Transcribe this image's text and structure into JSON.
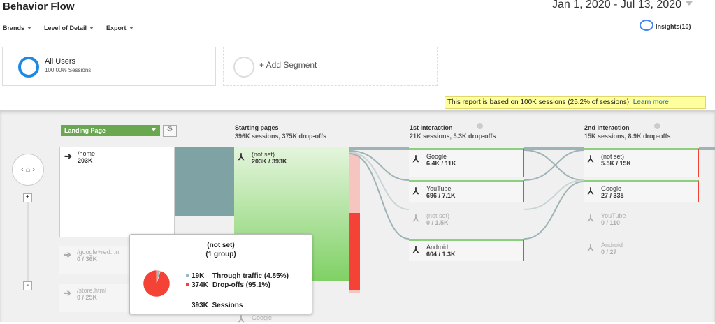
{
  "header": {
    "title": "Behavior Flow",
    "date_range": "Jan 1, 2020 - Jul 13, 2020"
  },
  "toolbar": {
    "menus": [
      "Brands",
      "Level of Detail",
      "Export"
    ],
    "insights": "Insights(10)"
  },
  "segments": [
    {
      "name": "All Users",
      "detail": "100.00% Sessions"
    },
    {
      "name": "+ Add Segment"
    }
  ],
  "notice": {
    "text": "This report is based on 100K sessions (25.2% of sessions).",
    "link": "Learn more"
  },
  "flow": {
    "dimension": "Landing Page",
    "landing_nodes": [
      {
        "label": "/home",
        "value": "203K"
      },
      {
        "label": "/google+red...n",
        "value": "0 / 36K"
      },
      {
        "label": "/store.html",
        "value": "0 / 25K"
      }
    ],
    "columns": [
      {
        "title": "Starting pages",
        "summary": "396K sessions, 375K drop-offs",
        "nodes": [
          {
            "label": "(not set)",
            "value": "203K / 393K"
          },
          {
            "label": "Google"
          }
        ]
      },
      {
        "title": "1st Interaction",
        "summary": "21K sessions, 5.3K drop-offs",
        "nodes": [
          {
            "label": "Google",
            "value": "6.4K / 11K"
          },
          {
            "label": "YouTube",
            "value": "696 / 7.1K"
          },
          {
            "label": "(not set)",
            "value": "0 / 1.5K"
          },
          {
            "label": "Android",
            "value": "604 / 1.3K"
          }
        ]
      },
      {
        "title": "2nd Interaction",
        "summary": "15K sessions, 8.9K drop-offs",
        "nodes": [
          {
            "label": "(not set)",
            "value": "5.5K / 15K"
          },
          {
            "label": "Google",
            "value": "27 / 335"
          },
          {
            "label": "YouTube",
            "value": "0 / 110"
          },
          {
            "label": "Android",
            "value": "0 / 27"
          }
        ]
      }
    ]
  },
  "tooltip": {
    "title": "(not set)",
    "subtitle": "(1 group)",
    "rows": [
      {
        "amount": "19K",
        "label": "Through traffic (4.85%)",
        "share": 4.85,
        "color": "#9fb8b8"
      },
      {
        "amount": "374K",
        "label": "Drop-offs (95.1%)",
        "share": 95.1,
        "color": "#f44336"
      }
    ],
    "total": {
      "amount": "393K",
      "label": "Sessions"
    }
  }
}
